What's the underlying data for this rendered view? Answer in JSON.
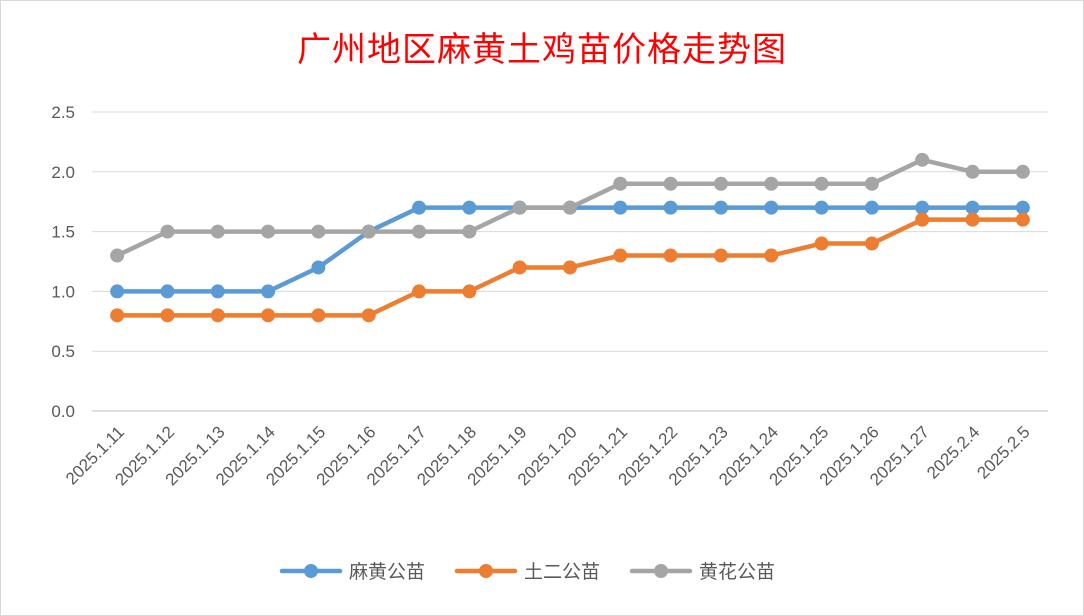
{
  "chart_data": {
    "type": "line",
    "title": "广州地区麻黄土鸡苗价格走势图",
    "xlabel": "",
    "ylabel": "",
    "ylim": [
      0,
      2.5
    ],
    "yticks": [
      "0.0",
      "0.5",
      "1.0",
      "1.5",
      "2.0",
      "2.5"
    ],
    "grid": true,
    "legend_position": "bottom",
    "categories": [
      "2025.1.11",
      "2025.1.12",
      "2025.1.13",
      "2025.1.14",
      "2025.1.15",
      "2025.1.16",
      "2025.1.17",
      "2025.1.18",
      "2025.1.19",
      "2025.1.20",
      "2025.1.21",
      "2025.1.22",
      "2025.1.23",
      "2025.1.24",
      "2025.1.25",
      "2025.1.26",
      "2025.1.27",
      "2025.2.4",
      "2025.2.5"
    ],
    "series": [
      {
        "name": "麻黄公苗",
        "color": "#5b9bd5",
        "values": [
          1.0,
          1.0,
          1.0,
          1.0,
          1.2,
          1.5,
          1.7,
          1.7,
          1.7,
          1.7,
          1.7,
          1.7,
          1.7,
          1.7,
          1.7,
          1.7,
          1.7,
          1.7,
          1.7
        ]
      },
      {
        "name": "土二公苗",
        "color": "#ed7d31",
        "values": [
          0.8,
          0.8,
          0.8,
          0.8,
          0.8,
          0.8,
          1.0,
          1.0,
          1.2,
          1.2,
          1.3,
          1.3,
          1.3,
          1.3,
          1.4,
          1.4,
          1.6,
          1.6,
          1.6
        ]
      },
      {
        "name": "黄花公苗",
        "color": "#a5a5a5",
        "values": [
          1.3,
          1.5,
          1.5,
          1.5,
          1.5,
          1.5,
          1.5,
          1.5,
          1.7,
          1.7,
          1.9,
          1.9,
          1.9,
          1.9,
          1.9,
          1.9,
          2.1,
          2.0,
          2.0
        ]
      }
    ]
  }
}
